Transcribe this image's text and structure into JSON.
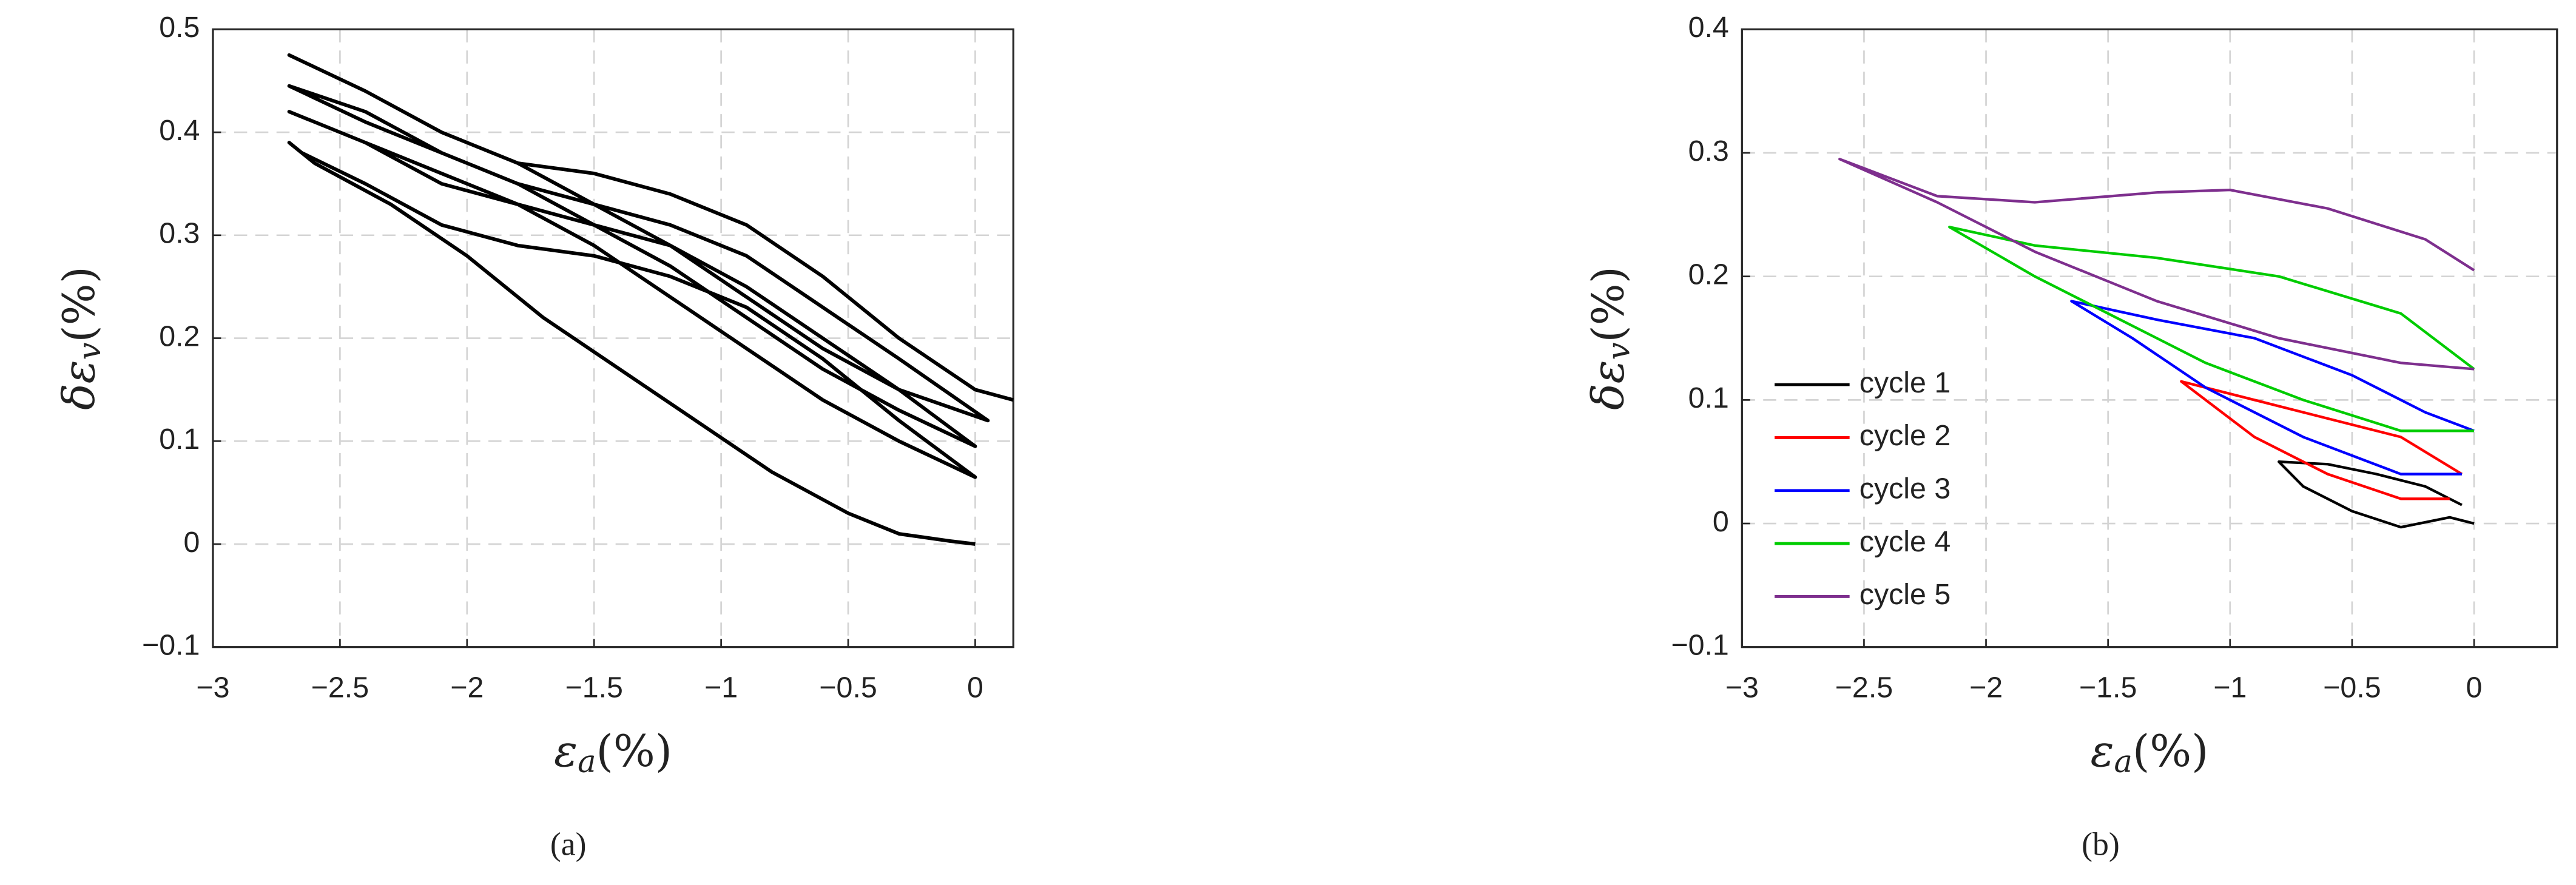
{
  "chart_data": [
    {
      "type": "line",
      "caption": "(a)",
      "x_label": {
        "symbol": "ε",
        "subscript": "a",
        "unit": "(%)"
      },
      "y_label": {
        "symbol": "δε",
        "subscript": "v",
        "unit": "(%)"
      },
      "xlim": [
        -3,
        0.15
      ],
      "ylim": [
        -0.1,
        0.5
      ],
      "xticks": [
        {
          "value": -3,
          "label": "−3"
        },
        {
          "value": -2.5,
          "label": "−2.5"
        },
        {
          "value": -2,
          "label": "−2"
        },
        {
          "value": -1.5,
          "label": "−1.5"
        },
        {
          "value": -1,
          "label": "−1"
        },
        {
          "value": -0.5,
          "label": "−0.5"
        },
        0
      ],
      "yticks": [
        {
          "value": -0.1,
          "label": "−0.1"
        },
        0,
        0.1,
        0.2,
        0.3,
        0.4,
        0.5
      ],
      "grid": true,
      "series": [
        {
          "color": "#000000",
          "x": [
            0,
            -0.1,
            -0.3,
            -0.5,
            -0.8,
            -1.1,
            -1.4,
            -1.7,
            -2,
            -2.3,
            -2.6,
            -2.7,
            -2.65,
            -2.4,
            -2.1,
            -1.8,
            -1.5,
            -1.2,
            -0.9,
            -0.6,
            -0.3,
            0,
            -0.3,
            -0.6,
            -0.9,
            -1.2,
            -1.5,
            -1.8,
            -2.1,
            -2.4,
            -2.7,
            -2.4,
            -2.1,
            -1.8,
            -1.5,
            -1.2,
            -0.9,
            -0.6,
            -0.3,
            0,
            -0.3,
            -0.6,
            -0.9,
            -1.2,
            -1.5,
            -1.8,
            -2.1,
            -2.4,
            -2.7,
            -2.4,
            -2.1,
            -1.8,
            -1.5,
            -1.2,
            -0.9,
            -0.6,
            -0.3,
            0.05,
            -0.3,
            -0.6,
            -0.9,
            -1.2,
            -1.5,
            -1.8,
            -2.1,
            -2.4,
            -2.7,
            -2.4,
            -2.1,
            -1.8,
            -1.5,
            -1.2,
            -0.9,
            -0.6,
            -0.3,
            0,
            0.15
          ],
          "values": [
            0,
            0.003,
            0.01,
            0.03,
            0.07,
            0.12,
            0.17,
            0.22,
            0.28,
            0.33,
            0.37,
            0.39,
            0.38,
            0.35,
            0.31,
            0.29,
            0.28,
            0.26,
            0.23,
            0.18,
            0.12,
            0.065,
            0.1,
            0.14,
            0.19,
            0.24,
            0.29,
            0.33,
            0.36,
            0.39,
            0.42,
            0.39,
            0.35,
            0.33,
            0.31,
            0.29,
            0.25,
            0.2,
            0.15,
            0.095,
            0.13,
            0.17,
            0.22,
            0.27,
            0.31,
            0.35,
            0.38,
            0.41,
            0.445,
            0.42,
            0.38,
            0.35,
            0.33,
            0.31,
            0.28,
            0.23,
            0.18,
            0.12,
            0.15,
            0.19,
            0.24,
            0.29,
            0.33,
            0.37,
            0.4,
            0.44,
            0.475,
            0.44,
            0.4,
            0.37,
            0.36,
            0.34,
            0.31,
            0.26,
            0.2,
            0.15,
            0.14
          ]
        }
      ]
    },
    {
      "type": "line",
      "caption": "(b)",
      "x_label": {
        "symbol": "ε",
        "subscript": "a",
        "unit": "(%)"
      },
      "y_label": {
        "symbol": "δε",
        "subscript": "v",
        "unit": "(%)"
      },
      "xlim": [
        -3,
        0.34
      ],
      "ylim": [
        -0.1,
        0.4
      ],
      "xticks": [
        {
          "value": -3,
          "label": "−3"
        },
        {
          "value": -2.5,
          "label": "−2.5"
        },
        {
          "value": -2,
          "label": "−2"
        },
        {
          "value": -1.5,
          "label": "−1.5"
        },
        {
          "value": -1,
          "label": "−1"
        },
        {
          "value": -0.5,
          "label": "−0.5"
        },
        0
      ],
      "yticks": [
        {
          "value": -0.1,
          "label": "−0.1"
        },
        0,
        0.1,
        0.2,
        0.3,
        0.4
      ],
      "grid": true,
      "legend": "lower-left",
      "series": [
        {
          "name": "cycle 1",
          "color": "#000000",
          "x": [
            0,
            -0.1,
            -0.3,
            -0.5,
            -0.7,
            -0.8,
            -0.6,
            -0.4,
            -0.2,
            -0.05
          ],
          "values": [
            0,
            0.005,
            -0.003,
            0.01,
            0.03,
            0.05,
            0.048,
            0.04,
            0.03,
            0.015
          ]
        },
        {
          "name": "cycle 2",
          "color": "#ff0000",
          "x": [
            -0.1,
            -0.3,
            -0.6,
            -0.9,
            -1.2,
            -0.9,
            -0.6,
            -0.3,
            -0.05
          ],
          "values": [
            0.02,
            0.02,
            0.04,
            0.07,
            0.115,
            0.1,
            0.085,
            0.07,
            0.04
          ]
        },
        {
          "name": "cycle 3",
          "color": "#0000ff",
          "x": [
            -0.05,
            -0.3,
            -0.7,
            -1.1,
            -1.4,
            -1.65,
            -1.3,
            -0.9,
            -0.5,
            -0.2,
            0
          ],
          "values": [
            0.04,
            0.04,
            0.07,
            0.11,
            0.15,
            0.18,
            0.165,
            0.15,
            0.12,
            0.09,
            0.075
          ]
        },
        {
          "name": "cycle 4",
          "color": "#00cc00",
          "x": [
            0,
            -0.3,
            -0.7,
            -1.1,
            -1.5,
            -1.8,
            -2.15,
            -1.8,
            -1.3,
            -0.8,
            -0.3,
            0
          ],
          "values": [
            0.075,
            0.075,
            0.1,
            0.13,
            0.17,
            0.2,
            0.24,
            0.225,
            0.215,
            0.2,
            0.17,
            0.125
          ]
        },
        {
          "name": "cycle 5",
          "color": "#7e2f8e",
          "x": [
            0,
            -0.3,
            -0.8,
            -1.3,
            -1.8,
            -2.2,
            -2.6,
            -2.2,
            -1.8,
            -1.3,
            -1,
            -0.6,
            -0.2,
            0
          ],
          "values": [
            0.125,
            0.13,
            0.15,
            0.18,
            0.22,
            0.26,
            0.295,
            0.265,
            0.26,
            0.268,
            0.27,
            0.255,
            0.23,
            0.205
          ]
        }
      ]
    }
  ]
}
